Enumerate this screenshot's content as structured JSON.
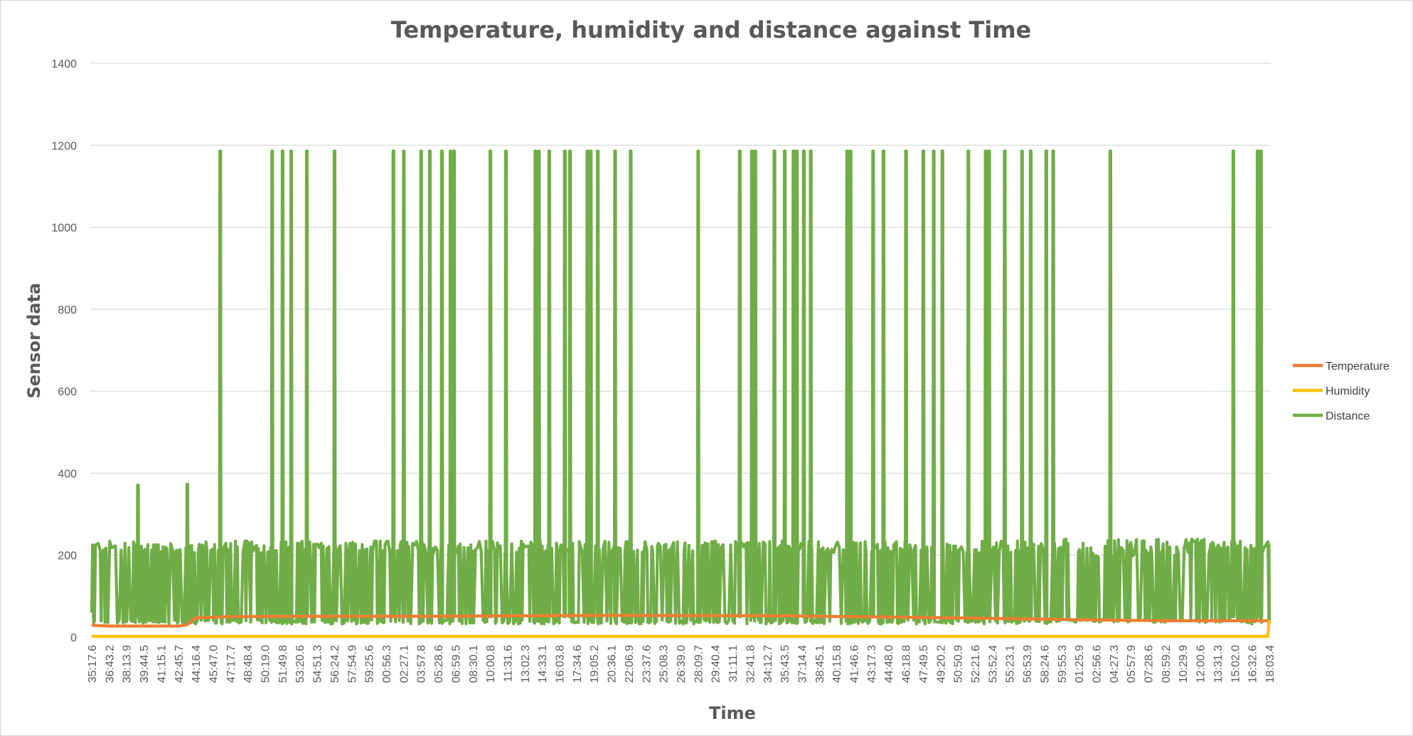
{
  "chart_data": {
    "type": "line",
    "title": "Temperature, humidity and distance against Time",
    "xlabel": "Time",
    "ylabel": "Sensor data",
    "ylim": [
      0,
      1400
    ],
    "yticks": [
      0,
      200,
      400,
      600,
      800,
      1000,
      1200,
      1400
    ],
    "grid": true,
    "legend": {
      "position": "right"
    },
    "x_tick_labels": [
      "35:17.6",
      "36:43.2",
      "38:13.9",
      "39:44.5",
      "41:15.1",
      "42:45.7",
      "44:16.4",
      "45:47.0",
      "47:17.7",
      "48:48.4",
      "50:19.0",
      "51:49.8",
      "53:20.6",
      "54:51.3",
      "56:24.2",
      "57:54.9",
      "59:25.6",
      "00:56.3",
      "02:27.1",
      "03:57.8",
      "05:28.6",
      "06:59.5",
      "08:30.1",
      "10:00.8",
      "11:31.6",
      "13:02.3",
      "14:33.1",
      "16:03.8",
      "17:34.6",
      "19:05.2",
      "20:36.1",
      "22:06.9",
      "23:37.6",
      "25:08.3",
      "26:39.0",
      "28:09.7",
      "29:40.4",
      "31:11.1",
      "32:41.8",
      "34:12.7",
      "35:43.5",
      "37:14.4",
      "38:45.1",
      "40:15.8",
      "41:46.6",
      "43:17.3",
      "44:48.0",
      "46:18.8",
      "47:49.5",
      "49:20.2",
      "50:50.9",
      "52:21.6",
      "53:52.4",
      "55:23.1",
      "56:53.9",
      "58:24.6",
      "59:55.3",
      "01:25.9",
      "02:56.6",
      "04:27.3",
      "05:57.9",
      "07:28.6",
      "08:59.2",
      "10:29.9",
      "12:00.6",
      "13:31.3",
      "15:02.0",
      "16:32.6",
      "18:03.4"
    ],
    "series": [
      {
        "name": "Temperature",
        "color": "#ED7D31",
        "x": [
          0,
          0.5,
          1,
          1.5,
          2,
          2.5,
          3,
          3.5,
          4,
          4.5,
          5,
          5.5,
          6,
          8,
          12,
          20,
          30,
          40,
          50,
          58,
          62,
          68
        ],
        "values": [
          29,
          28,
          27,
          27,
          27,
          27,
          27,
          27,
          27,
          27,
          27,
          30,
          47,
          50,
          51,
          51,
          53,
          52,
          47,
          42,
          40,
          40
        ]
      },
      {
        "name": "Humidity",
        "color": "#FFC000",
        "x": [
          0,
          10,
          20,
          30,
          40,
          50,
          60,
          67.9,
          68
        ],
        "values": [
          2,
          2,
          2,
          2,
          2,
          2,
          2,
          2,
          42
        ]
      },
      {
        "name": "Distance",
        "color": "#70AD47",
        "spikes": [
          {
            "x": 2.65,
            "y": 371
          },
          {
            "x": 5.5,
            "y": 373
          },
          {
            "x": 7.4,
            "y": 1186
          },
          {
            "x": 10.4,
            "y": 1186
          },
          {
            "x": 11.0,
            "y": 1186
          },
          {
            "x": 11.5,
            "y": 1186
          },
          {
            "x": 12.4,
            "y": 1186
          },
          {
            "x": 14.0,
            "y": 1186
          },
          {
            "x": 17.4,
            "y": 1186
          },
          {
            "x": 18.0,
            "y": 1186
          },
          {
            "x": 19.0,
            "y": 1186
          },
          {
            "x": 19.5,
            "y": 1186
          },
          {
            "x": 20.2,
            "y": 1186
          },
          {
            "x": 20.7,
            "y": 1186
          },
          {
            "x": 20.9,
            "y": 1186
          },
          {
            "x": 23.0,
            "y": 1186
          },
          {
            "x": 23.9,
            "y": 1186
          },
          {
            "x": 25.6,
            "y": 1186
          },
          {
            "x": 25.8,
            "y": 1186
          },
          {
            "x": 26.4,
            "y": 1186
          },
          {
            "x": 27.3,
            "y": 1186
          },
          {
            "x": 27.6,
            "y": 1186
          },
          {
            "x": 28.6,
            "y": 1186
          },
          {
            "x": 28.8,
            "y": 1186
          },
          {
            "x": 29.2,
            "y": 1186
          },
          {
            "x": 30.2,
            "y": 1186
          },
          {
            "x": 31.1,
            "y": 1186
          },
          {
            "x": 35.0,
            "y": 1186
          },
          {
            "x": 37.4,
            "y": 1186
          },
          {
            "x": 38.1,
            "y": 1186
          },
          {
            "x": 38.3,
            "y": 1186
          },
          {
            "x": 39.4,
            "y": 1186
          },
          {
            "x": 40.0,
            "y": 1186
          },
          {
            "x": 40.5,
            "y": 1186
          },
          {
            "x": 40.7,
            "y": 1186
          },
          {
            "x": 41.1,
            "y": 1186
          },
          {
            "x": 41.5,
            "y": 1186
          },
          {
            "x": 43.6,
            "y": 1186
          },
          {
            "x": 43.8,
            "y": 1186
          },
          {
            "x": 45.1,
            "y": 1186
          },
          {
            "x": 45.7,
            "y": 1186
          },
          {
            "x": 47.0,
            "y": 1186
          },
          {
            "x": 48.0,
            "y": 1186
          },
          {
            "x": 48.6,
            "y": 1186
          },
          {
            "x": 49.1,
            "y": 1186
          },
          {
            "x": 50.6,
            "y": 1186
          },
          {
            "x": 51.6,
            "y": 1186
          },
          {
            "x": 51.8,
            "y": 1186
          },
          {
            "x": 52.7,
            "y": 1186
          },
          {
            "x": 53.7,
            "y": 1186
          },
          {
            "x": 54.2,
            "y": 1186
          },
          {
            "x": 55.1,
            "y": 1186
          },
          {
            "x": 55.5,
            "y": 1186
          },
          {
            "x": 58.8,
            "y": 1186
          },
          {
            "x": 65.9,
            "y": 1186
          },
          {
            "x": 67.3,
            "y": 1186
          },
          {
            "x": 67.5,
            "y": 1186
          }
        ]
      }
    ]
  }
}
